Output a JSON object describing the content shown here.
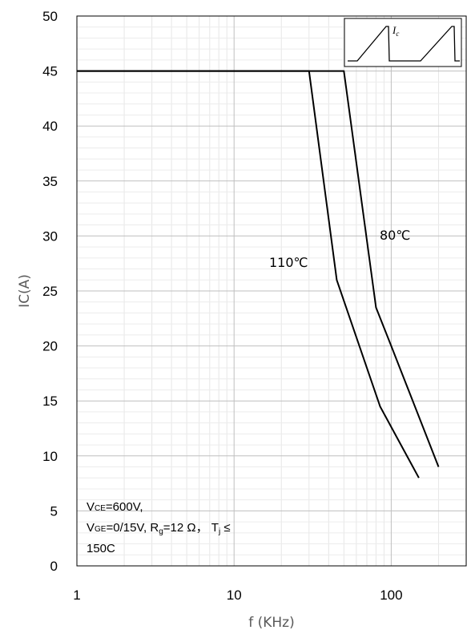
{
  "chart_data": {
    "type": "line",
    "xlabel": "f (KHz)",
    "ylabel": "IC(A)",
    "xscale": "log",
    "xlim": [
      1,
      300
    ],
    "ylim": [
      0,
      50
    ],
    "xticks": [
      1,
      10,
      100
    ],
    "xtick_labels": [
      "1",
      "10",
      "100"
    ],
    "yticks": [
      0,
      5,
      10,
      15,
      20,
      25,
      30,
      35,
      40,
      45,
      50
    ],
    "ytick_labels": [
      "0",
      "5",
      "10",
      "15",
      "20",
      "25",
      "30",
      "35",
      "40",
      "45",
      "50"
    ],
    "grid": true,
    "series": [
      {
        "name": "110℃",
        "points": [
          [
            1,
            45
          ],
          [
            30,
            45
          ],
          [
            45,
            26
          ],
          [
            85,
            14.5
          ],
          [
            150,
            8
          ]
        ]
      },
      {
        "name": "80℃",
        "points": [
          [
            1,
            45
          ],
          [
            50,
            45
          ],
          [
            80,
            23.5
          ],
          [
            100,
            20
          ],
          [
            200,
            9
          ]
        ]
      }
    ],
    "conditions": {
      "line1": {
        "v": "V",
        "sub": "CE",
        "rest": "=600V,"
      },
      "line2": {
        "v": "V",
        "sub1": "GE",
        "mid": "=0/15V,  R",
        "sub2": "g",
        "mid2": "=12 Ω，  T",
        "sub3": "j",
        "end": " ≤"
      },
      "line3": "150C"
    },
    "inset": {
      "label": "I",
      "label_sub": "c"
    }
  }
}
